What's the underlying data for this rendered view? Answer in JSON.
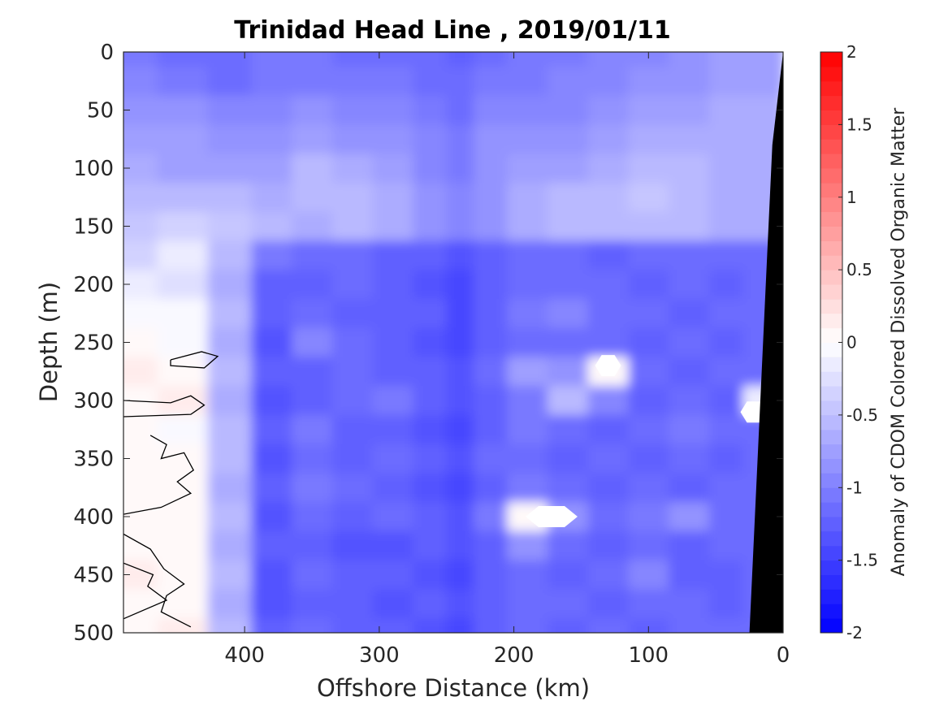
{
  "chart_data": {
    "type": "heatmap",
    "title": "Trinidad Head Line , 2019/01/11",
    "xlabel": "Offshore Distance (km)",
    "ylabel": "Depth (m)",
    "xlim": [
      490,
      0
    ],
    "ylim": [
      0,
      500
    ],
    "x_reversed": true,
    "y_reversed": true,
    "x_ticks": [
      400,
      300,
      200,
      100,
      0
    ],
    "x_tick_labels": [
      "400",
      "300",
      "200",
      "100",
      "0"
    ],
    "y_ticks": [
      0,
      50,
      100,
      150,
      200,
      250,
      300,
      350,
      400,
      450,
      500
    ],
    "y_tick_labels": [
      "0",
      "50",
      "100",
      "150",
      "200",
      "250",
      "300",
      "350",
      "400",
      "450",
      "500"
    ],
    "colorbar": {
      "label": "Anomaly of CDOM Colored Dissolved Organic Matter",
      "range": [
        -2,
        2
      ],
      "ticks": [
        -2,
        -1.5,
        -1,
        -0.5,
        0,
        0.5,
        1,
        1.5,
        2
      ],
      "tick_labels": [
        "-2",
        "-1.5",
        "-1",
        "-0.5",
        "0",
        "0.5",
        "1",
        "1.5",
        "2"
      ],
      "levels": 40,
      "colormap": "blue-white-red",
      "low_color": "#0000ff",
      "mid_color": "#ffffff",
      "high_color": "#ff0000"
    },
    "value_rows": {
      "depths_m": [
        0,
        25,
        50,
        75,
        100,
        125,
        150,
        175,
        200,
        225,
        250,
        275,
        300,
        325,
        350,
        375,
        400,
        425,
        450,
        475,
        500
      ],
      "distances_km": [
        485,
        445,
        410,
        380,
        350,
        320,
        290,
        260,
        240,
        220,
        190,
        160,
        130,
        100,
        70,
        40,
        20
      ],
      "values": [
        [
          -1.1,
          -1.2,
          -1.2,
          -1.1,
          -1.1,
          -1.2,
          -1.2,
          -1.2,
          -1.3,
          -1.2,
          -1.1,
          -1.1,
          -1.0,
          -1.0,
          -0.9,
          -0.8,
          -0.8
        ],
        [
          -1.0,
          -1.1,
          -1.2,
          -1.1,
          -1.1,
          -1.1,
          -1.1,
          -1.2,
          -1.2,
          -1.1,
          -1.1,
          -1.0,
          -1.0,
          -0.9,
          -0.9,
          -0.8,
          -0.8
        ],
        [
          -0.9,
          -0.9,
          -1.0,
          -1.0,
          -0.9,
          -1.0,
          -1.0,
          -1.1,
          -1.2,
          -1.0,
          -1.0,
          -1.0,
          -0.9,
          -0.8,
          -0.8,
          -0.7,
          -0.7
        ],
        [
          -0.8,
          -0.8,
          -0.9,
          -0.9,
          -0.8,
          -0.9,
          -0.9,
          -1.0,
          -1.1,
          -0.9,
          -0.9,
          -0.9,
          -0.8,
          -0.7,
          -0.7,
          -0.7,
          -0.7
        ],
        [
          -0.7,
          -0.8,
          -0.8,
          -0.8,
          -0.6,
          -0.7,
          -0.8,
          -1.0,
          -1.1,
          -0.9,
          -0.8,
          -0.8,
          -0.7,
          -0.6,
          -0.6,
          -0.7,
          -0.7
        ],
        [
          -0.6,
          -0.6,
          -0.6,
          -0.7,
          -0.6,
          -0.6,
          -0.7,
          -0.9,
          -1.0,
          -0.9,
          -0.7,
          -0.6,
          -0.6,
          -0.5,
          -0.6,
          -0.7,
          -0.7
        ],
        [
          -0.5,
          -0.4,
          -0.5,
          -0.6,
          -0.7,
          -0.6,
          -0.7,
          -0.9,
          -1.0,
          -0.9,
          -0.7,
          -0.6,
          -0.6,
          -0.6,
          -0.6,
          -0.7,
          -0.7
        ],
        [
          -0.4,
          -0.2,
          -0.6,
          -1.1,
          -1.2,
          -1.2,
          -1.3,
          -1.3,
          -1.4,
          -1.3,
          -1.2,
          -1.2,
          -1.3,
          -1.2,
          -1.2,
          -1.2,
          -1.2
        ],
        [
          -0.2,
          -0.3,
          -0.7,
          -1.3,
          -1.3,
          -1.2,
          -1.3,
          -1.4,
          -1.5,
          -1.3,
          -1.2,
          -1.2,
          -1.2,
          -1.3,
          -1.2,
          -1.3,
          -1.2
        ],
        [
          -0.1,
          -0.1,
          -0.6,
          -1.3,
          -1.2,
          -1.3,
          -1.3,
          -1.3,
          -1.5,
          -1.3,
          -1.1,
          -1.0,
          -1.2,
          -1.2,
          -1.3,
          -1.2,
          -1.2
        ],
        [
          0.0,
          -0.1,
          -0.7,
          -1.4,
          -1.0,
          -1.2,
          -1.3,
          -1.4,
          -1.5,
          -1.3,
          -1.2,
          -1.2,
          -1.2,
          -1.3,
          -1.2,
          -1.3,
          -1.2
        ],
        [
          0.1,
          0.0,
          -0.6,
          -1.3,
          -1.3,
          -1.2,
          -1.3,
          -1.3,
          -1.4,
          -1.2,
          -0.8,
          -0.9,
          0.0,
          -1.2,
          -1.3,
          -1.2,
          -1.2
        ],
        [
          0.0,
          0.1,
          -0.7,
          -1.4,
          -1.3,
          -1.2,
          -1.1,
          -1.3,
          -1.4,
          -1.3,
          -1.1,
          -0.6,
          -1.0,
          -1.3,
          -1.2,
          -1.3,
          -0.2
        ],
        [
          0.0,
          -0.1,
          -0.6,
          -1.3,
          -1.1,
          -1.3,
          -1.3,
          -1.4,
          -1.5,
          -1.3,
          -1.1,
          -1.2,
          -1.3,
          -1.2,
          -1.1,
          -1.2,
          -1.2
        ],
        [
          0.0,
          0.0,
          -0.6,
          -1.4,
          -1.2,
          -1.3,
          -1.2,
          -1.3,
          -1.4,
          -1.2,
          -1.2,
          -1.3,
          -1.2,
          -1.3,
          -1.2,
          -1.3,
          -1.2
        ],
        [
          0.0,
          0.0,
          -0.7,
          -1.3,
          -1.1,
          -1.2,
          -1.3,
          -1.4,
          -1.5,
          -1.3,
          -1.1,
          -1.2,
          -1.3,
          -1.2,
          -1.3,
          -1.2,
          -1.2
        ],
        [
          0.0,
          0.0,
          -0.6,
          -1.4,
          -1.2,
          -1.3,
          -1.2,
          -1.3,
          -1.4,
          -1.1,
          0.0,
          -0.9,
          -1.2,
          -1.1,
          -0.9,
          -1.2,
          -1.2
        ],
        [
          0.0,
          0.0,
          -0.7,
          -1.3,
          -1.3,
          -1.4,
          -1.4,
          -1.3,
          -1.4,
          -1.3,
          -0.9,
          -1.2,
          -1.3,
          -1.2,
          -1.3,
          -1.2,
          -1.2
        ],
        [
          0.1,
          0.0,
          -0.6,
          -1.4,
          -1.2,
          -1.3,
          -1.3,
          -1.4,
          -1.5,
          -1.3,
          -1.2,
          -1.3,
          -1.2,
          -1.0,
          -1.3,
          -1.3,
          -1.2
        ],
        [
          0.0,
          0.0,
          -0.7,
          -1.4,
          -1.3,
          -1.3,
          -1.4,
          -1.3,
          -1.4,
          -1.3,
          -1.2,
          -1.2,
          -1.3,
          -1.2,
          -1.2,
          -1.3,
          -1.2
        ],
        [
          0.0,
          0.1,
          -0.6,
          -1.3,
          -1.2,
          -1.3,
          -1.3,
          -1.4,
          -1.5,
          -1.3,
          -1.2,
          -1.3,
          -1.2,
          -1.3,
          -1.2,
          -1.2,
          -1.2
        ]
      ]
    },
    "coastline_depths_m": [
      0,
      80,
      500
    ],
    "coastline_distances_km": [
      0,
      8,
      25
    ],
    "coastline_color": "#000000",
    "zero_contour_color": "#000000",
    "no_data_regions": [
      {
        "distance_km": 130,
        "depth_m": 270
      },
      {
        "distance_km": 172,
        "depth_m": 400
      },
      {
        "distance_km": 22,
        "depth_m": 310
      }
    ]
  }
}
